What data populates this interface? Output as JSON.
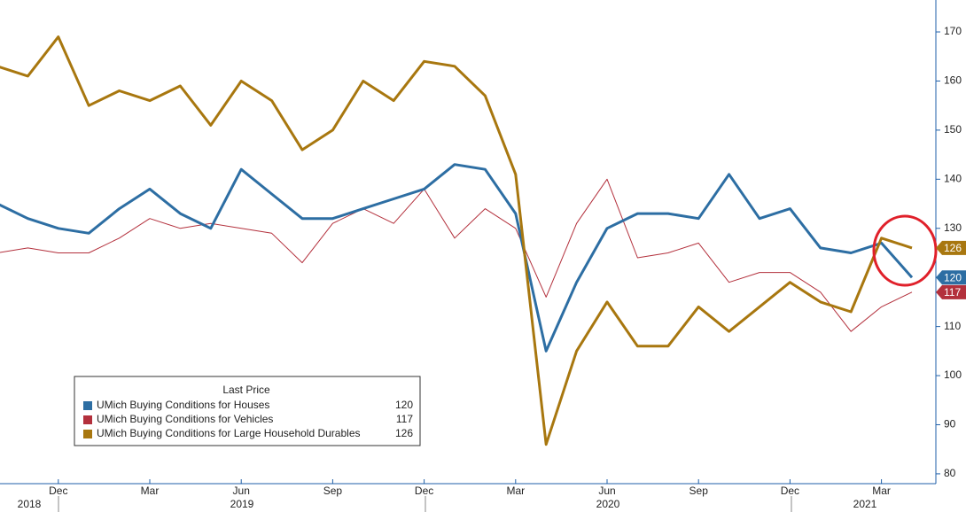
{
  "chart_data": {
    "type": "line",
    "categories": [
      null,
      null,
      "Dec",
      null,
      null,
      "Mar",
      null,
      null,
      "Jun",
      null,
      null,
      "Sep",
      null,
      null,
      "Dec",
      null,
      null,
      "Mar",
      null,
      null,
      "Jun",
      null,
      null,
      "Sep",
      null,
      null,
      "Dec",
      null,
      null,
      "Mar",
      null
    ],
    "x_years": [
      "2018",
      "2019",
      "2020",
      "2021"
    ],
    "legend_title": "Last Price",
    "series": [
      {
        "name": "UMich Buying Conditions for Houses",
        "color": "#2d6ea3",
        "values": [
          135,
          132,
          130,
          129,
          134,
          138,
          133,
          130,
          142,
          137,
          132,
          132,
          134,
          136,
          138,
          143,
          142,
          133,
          105,
          119,
          130,
          133,
          133,
          132,
          141,
          132,
          134,
          126,
          125,
          127,
          120
        ]
      },
      {
        "name": "UMich Buying Conditions for Vehicles",
        "color": "#b3303c",
        "values": [
          125,
          126,
          125,
          125,
          128,
          132,
          130,
          131,
          130,
          129,
          123,
          131,
          134,
          131,
          138,
          128,
          134,
          130,
          116,
          131,
          140,
          124,
          125,
          127,
          119,
          121,
          121,
          117,
          109,
          114,
          117
        ]
      },
      {
        "name": "UMich Buying Conditions for Large Household Durables",
        "color": "#a8770f",
        "values": [
          163,
          161,
          169,
          155,
          158,
          156,
          159,
          151,
          160,
          156,
          146,
          150,
          160,
          156,
          164,
          163,
          157,
          141,
          86,
          105,
          115,
          106,
          106,
          114,
          109,
          114,
          119,
          115,
          113,
          128,
          126
        ]
      }
    ],
    "ylim": [
      78,
      176.5
    ],
    "yticks": [
      80,
      90,
      100,
      110,
      120,
      130,
      140,
      150,
      160,
      170
    ]
  }
}
